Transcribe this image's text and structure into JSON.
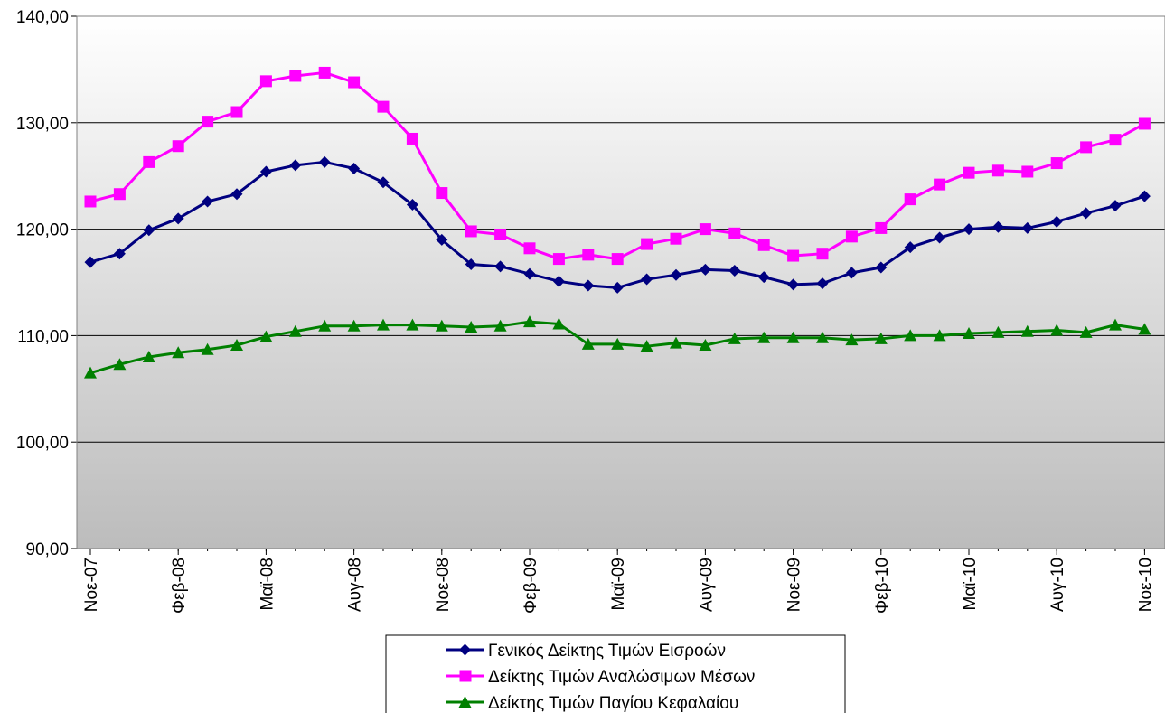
{
  "chart_data": {
    "type": "line",
    "title": "",
    "xlabel": "",
    "ylabel": "",
    "ylim": [
      90,
      140
    ],
    "yticks": [
      "90,00",
      "100,00",
      "110,00",
      "120,00",
      "130,00",
      "140,00"
    ],
    "ytick_values": [
      90,
      100,
      110,
      120,
      130,
      140
    ],
    "grid": true,
    "legend_position": "bottom",
    "x_tick_labels": [
      {
        "index": 0,
        "label": "Νοε-07"
      },
      {
        "index": 3,
        "label": "Φεβ-08"
      },
      {
        "index": 6,
        "label": "Μαϊ-08"
      },
      {
        "index": 9,
        "label": "Αυγ-08"
      },
      {
        "index": 12,
        "label": "Νοε-08"
      },
      {
        "index": 15,
        "label": "Φεβ-09"
      },
      {
        "index": 18,
        "label": "Μαϊ-09"
      },
      {
        "index": 21,
        "label": "Αυγ-09"
      },
      {
        "index": 24,
        "label": "Νοε-09"
      },
      {
        "index": 27,
        "label": "Φεβ-10"
      },
      {
        "index": 30,
        "label": "Μαϊ-10"
      },
      {
        "index": 33,
        "label": "Αυγ-10"
      },
      {
        "index": 36,
        "label": "Νοε-10"
      }
    ],
    "series": [
      {
        "name": "Γενικός Δείκτης Τιμών Εισροών",
        "color": "#000080",
        "marker": "diamond",
        "values": [
          116.9,
          117.7,
          119.9,
          121.0,
          122.6,
          123.3,
          125.4,
          126.0,
          126.3,
          125.7,
          124.4,
          122.3,
          119.0,
          116.7,
          116.5,
          115.8,
          115.1,
          114.7,
          114.5,
          115.3,
          115.7,
          116.2,
          116.1,
          115.5,
          114.8,
          114.9,
          115.9,
          116.4,
          118.3,
          119.2,
          120.0,
          120.2,
          120.1,
          120.7,
          121.5,
          122.2,
          123.1
        ]
      },
      {
        "name": "Δείκτης Τιμών Αναλώσιμων Μέσων",
        "color": "#FF00FF",
        "marker": "square",
        "values": [
          122.6,
          123.3,
          126.3,
          127.8,
          130.1,
          131.0,
          133.9,
          134.4,
          134.7,
          133.8,
          131.5,
          128.5,
          123.4,
          119.8,
          119.5,
          118.2,
          117.2,
          117.6,
          117.2,
          118.6,
          119.1,
          120.0,
          119.6,
          118.5,
          117.5,
          117.7,
          119.3,
          120.1,
          122.8,
          124.2,
          125.3,
          125.5,
          125.4,
          126.2,
          127.7,
          128.4,
          129.9
        ]
      },
      {
        "name": "Δείκτης Τιμών Παγίου Κεφαλαίου",
        "color": "#008000",
        "marker": "triangle",
        "values": [
          106.5,
          107.3,
          108.0,
          108.4,
          108.7,
          109.1,
          109.9,
          110.4,
          110.9,
          110.9,
          111.0,
          111.0,
          110.9,
          110.8,
          110.9,
          111.3,
          111.1,
          109.2,
          109.2,
          109.0,
          109.3,
          109.1,
          109.7,
          109.8,
          109.8,
          109.8,
          109.6,
          109.7,
          110.0,
          110.0,
          110.2,
          110.3,
          110.4,
          110.5,
          110.3,
          111.0,
          110.6
        ]
      }
    ]
  }
}
